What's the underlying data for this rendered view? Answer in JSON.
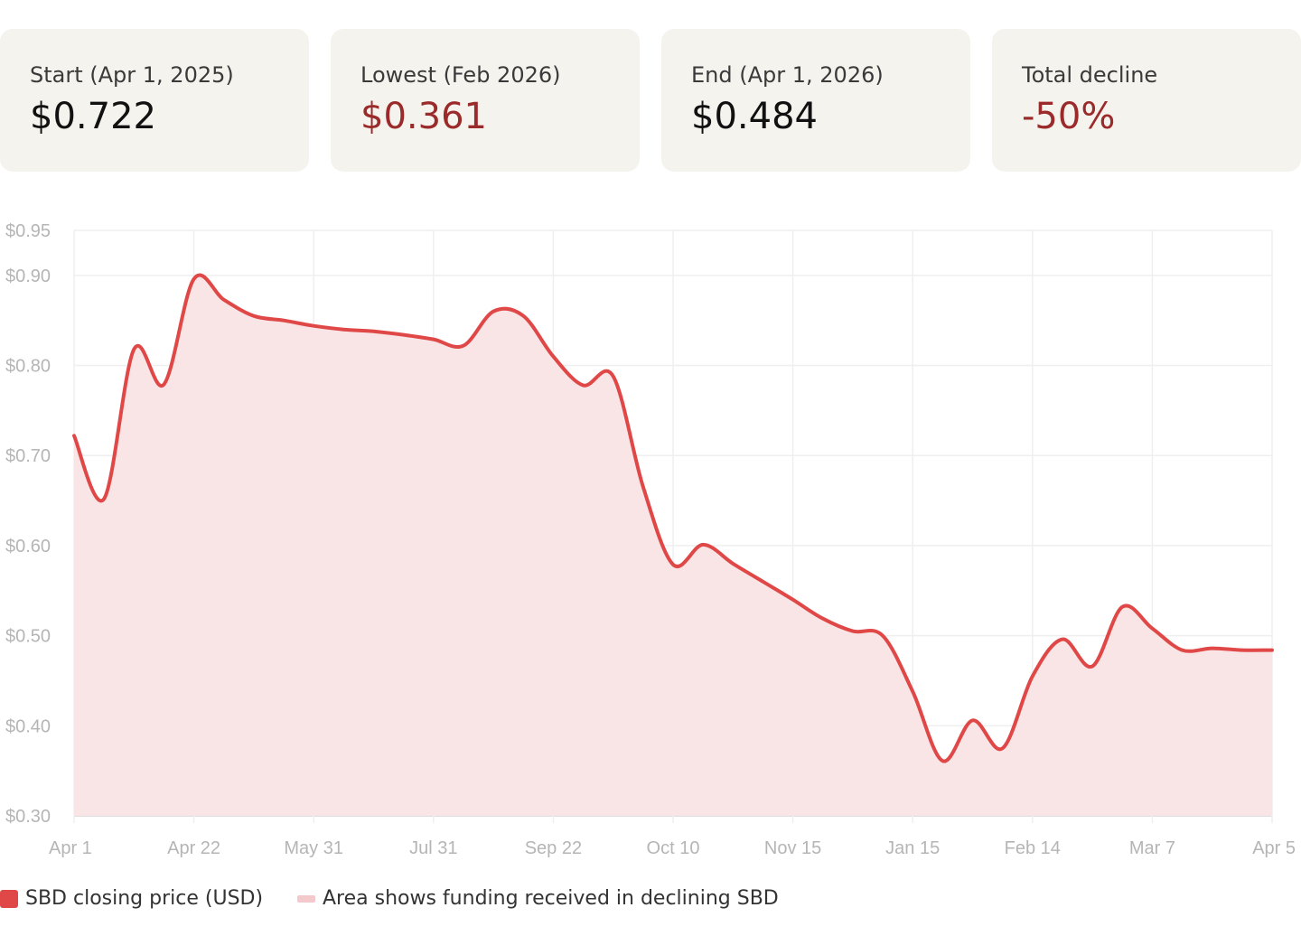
{
  "stats": [
    {
      "label": "Start (Apr 1, 2025)",
      "value": "$0.722",
      "negative": false
    },
    {
      "label": "Lowest (Feb 2026)",
      "value": "$0.361",
      "negative": true
    },
    {
      "label": "End (Apr 1, 2026)",
      "value": "$0.484",
      "negative": false
    },
    {
      "label": "Total decline",
      "value": "-50%",
      "negative": true
    }
  ],
  "chart_data": {
    "type": "area",
    "x_tick_labels": [
      "Apr 1",
      "Apr 22",
      "May 31",
      "Jul 31",
      "Sep 22",
      "Oct 10",
      "Nov 15",
      "Jan 15",
      "Feb 14",
      "Mar 7",
      "Apr 5"
    ],
    "y_tick_labels": [
      "$0.30",
      "$0.40",
      "$0.50",
      "$0.60",
      "$0.70",
      "$0.80",
      "$0.90",
      "$0.95"
    ],
    "y_ticks": [
      0.3,
      0.4,
      0.5,
      0.6,
      0.7,
      0.8,
      0.9,
      0.95
    ],
    "ylim": [
      0.3,
      0.95
    ],
    "grid": true,
    "series": [
      {
        "name": "SBD closing price (USD)",
        "color": "#e04848",
        "fill": "#fae5e6",
        "x": [
          0,
          0.25,
          0.5,
          0.75,
          1,
          1.25,
          1.5,
          1.75,
          2,
          2.25,
          2.5,
          2.75,
          3,
          3.25,
          3.5,
          3.75,
          4,
          4.25,
          4.5,
          4.75,
          5,
          5.25,
          5.5,
          5.75,
          6,
          6.25,
          6.5,
          6.75,
          7,
          7.25,
          7.5,
          7.75,
          8,
          8.25,
          8.5,
          8.75,
          9,
          9.25,
          9.5,
          9.75,
          10
        ],
        "values": [
          0.722,
          0.652,
          0.818,
          0.779,
          0.896,
          0.873,
          0.855,
          0.85,
          0.844,
          0.84,
          0.838,
          0.834,
          0.829,
          0.822,
          0.86,
          0.855,
          0.81,
          0.778,
          0.788,
          0.665,
          0.579,
          0.601,
          0.58,
          0.56,
          0.54,
          0.519,
          0.505,
          0.5,
          0.438,
          0.361,
          0.406,
          0.375,
          0.455,
          0.496,
          0.466,
          0.532,
          0.508,
          0.484,
          0.486,
          0.484,
          0.484
        ]
      }
    ],
    "legend": [
      {
        "text": "SBD closing price (USD)",
        "color": "#e04848"
      },
      {
        "text": "Area shows funding received in declining SBD",
        "color": "#f4c9cc"
      }
    ],
    "legend_position": "bottom-left"
  }
}
